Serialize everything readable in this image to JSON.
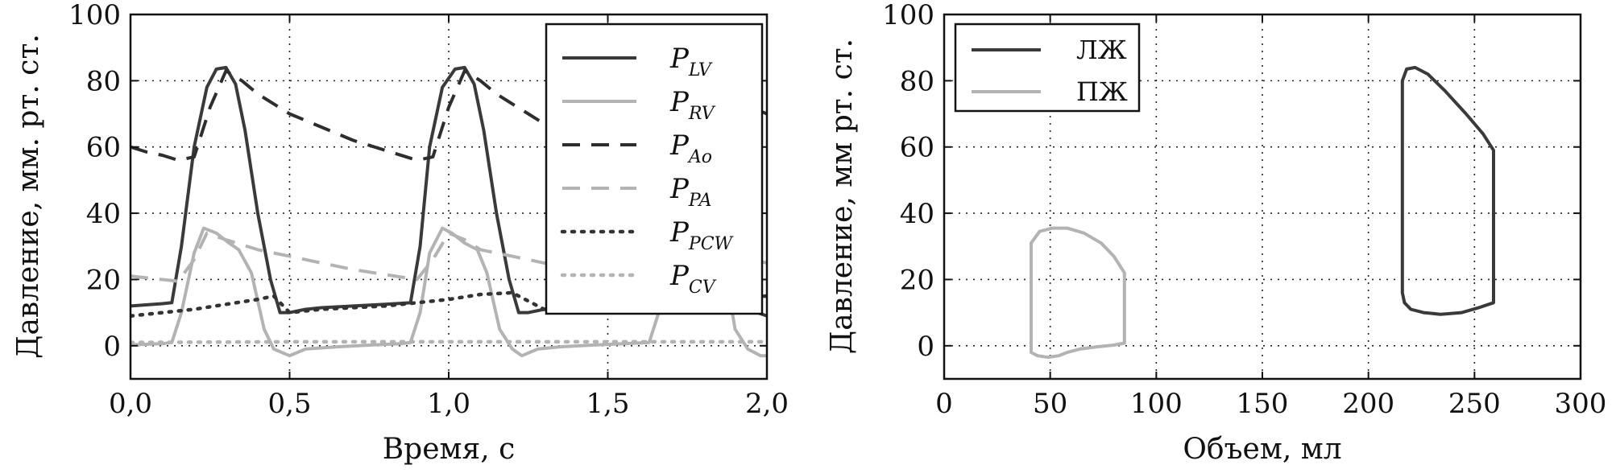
{
  "chart_data": [
    {
      "type": "line",
      "xlabel": "Время, с",
      "ylabel": "Давление, мм. рт. ст.",
      "xlim": [
        0,
        2
      ],
      "ylim": [
        -10,
        100
      ],
      "xticks": [
        0,
        0.5,
        1.0,
        1.5,
        2.0
      ],
      "xtick_labels": [
        "0,0",
        "0,5",
        "1,0",
        "1,5",
        "2,0"
      ],
      "yticks": [
        0,
        20,
        40,
        60,
        80,
        100
      ],
      "ytick_labels": [
        "0",
        "20",
        "40",
        "60",
        "80",
        "100"
      ],
      "grid": true,
      "legend_position": "top-right",
      "series": [
        {
          "name": "P",
          "sub": "LV",
          "style": "solid",
          "color": "#3a3a3a",
          "x": [
            0,
            0.1,
            0.13,
            0.16,
            0.2,
            0.24,
            0.27,
            0.3,
            0.33,
            0.36,
            0.4,
            0.44,
            0.47,
            0.5,
            0.55,
            0.6,
            0.7,
            0.8,
            0.88,
            0.91,
            0.94,
            0.98,
            1.02,
            1.05,
            1.08,
            1.11,
            1.15,
            1.19,
            1.22,
            1.25,
            1.3,
            1.4,
            1.5,
            1.6,
            1.63,
            1.66,
            1.7,
            1.74,
            1.77,
            1.8,
            1.83,
            1.86,
            1.9,
            1.94,
            1.97,
            2.0
          ],
          "y": [
            12,
            12.7,
            13,
            30,
            60,
            78,
            83.5,
            84,
            79,
            65,
            40,
            20,
            10,
            10,
            11,
            11.5,
            12,
            12.5,
            13,
            30,
            60,
            78,
            83.5,
            84,
            79,
            65,
            40,
            20,
            10,
            10,
            11,
            11.5,
            12,
            13,
            30,
            60,
            78,
            83.5,
            84,
            79,
            65,
            40,
            20,
            12,
            10,
            9
          ]
        },
        {
          "name": "P",
          "sub": "RV",
          "style": "solid",
          "color": "#b3b3b3",
          "x": [
            0,
            0.1,
            0.13,
            0.16,
            0.2,
            0.23,
            0.27,
            0.31,
            0.34,
            0.38,
            0.42,
            0.45,
            0.5,
            0.55,
            0.65,
            0.75,
            0.85,
            0.88,
            0.91,
            0.94,
            0.98,
            1.01,
            1.05,
            1.09,
            1.12,
            1.16,
            1.2,
            1.23,
            1.28,
            1.35,
            1.45,
            1.55,
            1.63,
            1.66,
            1.69,
            1.72,
            1.76,
            1.79,
            1.83,
            1.87,
            1.9,
            1.94,
            1.98,
            2.0
          ],
          "y": [
            0.3,
            0.6,
            1,
            10,
            28,
            35.5,
            34,
            31,
            29,
            22,
            5,
            -1,
            -3,
            -1,
            -0.3,
            0.2,
            0.6,
            1,
            10,
            28,
            35.5,
            34,
            31,
            29,
            22,
            5,
            -1,
            -3,
            -1,
            -0.3,
            0.2,
            0.6,
            1,
            10,
            28,
            35.5,
            34,
            31,
            29,
            22,
            5,
            -1,
            -3,
            -3
          ]
        },
        {
          "name": "P",
          "sub": "Ao",
          "style": "dashed",
          "color": "#2e2e2e",
          "x": [
            0,
            0.05,
            0.1,
            0.15,
            0.2,
            0.25,
            0.3,
            0.35,
            0.4,
            0.45,
            0.5,
            0.6,
            0.7,
            0.8,
            0.9,
            0.95,
            1.0,
            1.05,
            1.1,
            1.15,
            1.2,
            1.25,
            1.3,
            1.4,
            1.5,
            1.6,
            1.7,
            1.75,
            1.8,
            1.85,
            1.9,
            1.95,
            2.0
          ],
          "y": [
            60,
            58.5,
            57.5,
            56,
            57,
            72,
            83,
            80,
            76,
            73,
            70,
            66,
            62,
            59,
            56,
            57,
            72,
            83,
            80,
            76,
            73,
            70,
            67,
            63,
            59,
            57,
            60,
            72,
            80,
            78,
            75,
            72,
            70
          ]
        },
        {
          "name": "P",
          "sub": "PA",
          "style": "dashed",
          "color": "#b3b3b3",
          "x": [
            0,
            0.05,
            0.1,
            0.15,
            0.2,
            0.24,
            0.3,
            0.4,
            0.5,
            0.6,
            0.7,
            0.8,
            0.9,
            0.95,
            1.0,
            1.05,
            1.1,
            1.2,
            1.3,
            1.4,
            1.5,
            1.6,
            1.65,
            1.7,
            1.75,
            1.8,
            1.9,
            2.0
          ],
          "y": [
            21,
            20.5,
            20,
            19.5,
            26,
            34,
            32,
            29,
            27,
            25,
            23,
            21.5,
            20,
            26,
            34,
            32,
            29,
            27,
            25,
            23,
            21.5,
            20,
            26,
            34,
            32,
            29,
            27,
            25
          ]
        },
        {
          "name": "P",
          "sub": "PCW",
          "style": "dotted",
          "color": "#333333",
          "x": [
            0,
            0.2,
            0.3,
            0.4,
            0.45,
            0.5,
            0.6,
            0.8,
            0.9,
            1.0,
            1.1,
            1.2,
            1.3,
            1.4,
            1.5,
            1.6,
            1.8,
            2.0
          ],
          "y": [
            9,
            11,
            12.5,
            14,
            15,
            10,
            11,
            12,
            13,
            14,
            15.5,
            16,
            11,
            11.5,
            12,
            13,
            14,
            15
          ]
        },
        {
          "name": "P",
          "sub": "CV",
          "style": "dotted",
          "color": "#b3b3b3",
          "x": [
            0,
            0.5,
            1.0,
            1.5,
            2.0
          ],
          "y": [
            1,
            1.2,
            1.2,
            1.2,
            1.2
          ]
        }
      ]
    },
    {
      "type": "line",
      "xlabel": "Объем, мл",
      "ylabel": "Давление, мм рт. ст.",
      "xlim": [
        0,
        300
      ],
      "ylim": [
        -10,
        100
      ],
      "xticks": [
        0,
        50,
        100,
        150,
        200,
        250,
        300
      ],
      "xtick_labels": [
        "0",
        "50",
        "100",
        "150",
        "200",
        "250",
        "300"
      ],
      "yticks": [
        0,
        20,
        40,
        60,
        80,
        100
      ],
      "ytick_labels": [
        "0",
        "20",
        "40",
        "60",
        "80",
        "100"
      ],
      "grid": true,
      "legend_position": "top-left",
      "series": [
        {
          "name": "ЛЖ",
          "style": "solid",
          "color": "#3a3a3a",
          "x": [
            216,
            216,
            218,
            222,
            228,
            236,
            246,
            254,
            259,
            259,
            252,
            244,
            234,
            226,
            220,
            217,
            216
          ],
          "y": [
            16,
            80,
            83.5,
            84,
            82,
            77,
            70,
            64,
            59,
            13,
            11.5,
            10,
            9.5,
            10,
            11,
            13,
            16
          ],
          "closed": true
        },
        {
          "name": "ПЖ",
          "style": "solid",
          "color": "#b3b3b3",
          "x": [
            41,
            41,
            45,
            51,
            58,
            66,
            74,
            80,
            85,
            85,
            80,
            72,
            64,
            58,
            54,
            49,
            44,
            41
          ],
          "y": [
            -2,
            31,
            34.5,
            35.5,
            35.5,
            34,
            31,
            27,
            22,
            0.8,
            0.2,
            -0.3,
            -1,
            -2,
            -3,
            -3.5,
            -3,
            -2
          ],
          "closed": true
        }
      ]
    }
  ]
}
